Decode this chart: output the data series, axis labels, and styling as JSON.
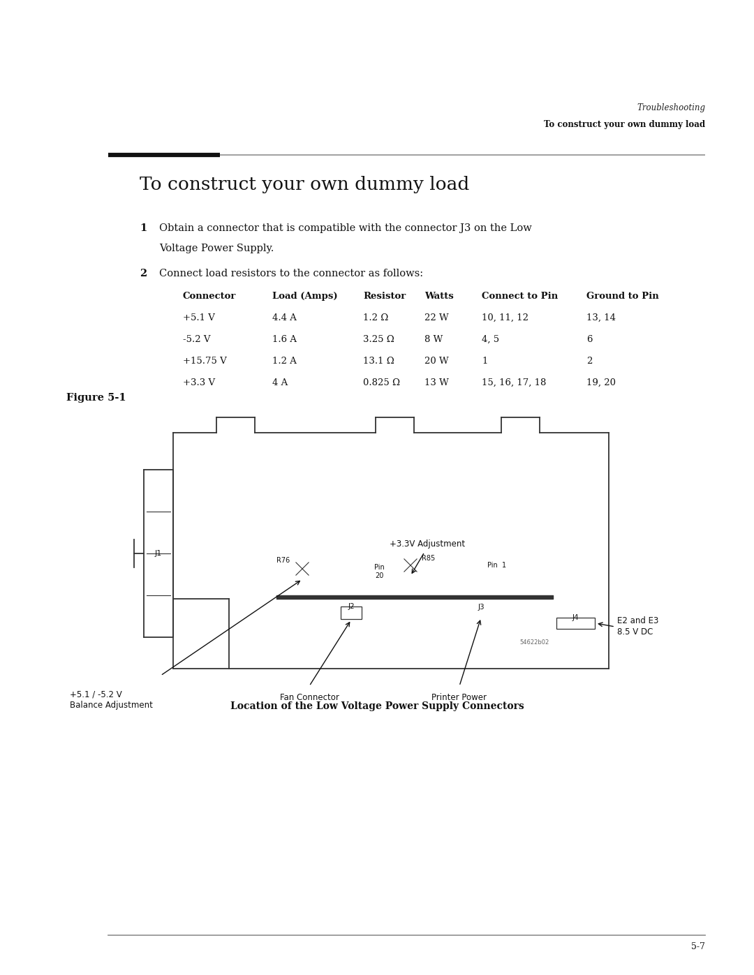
{
  "bg_color": "#ffffff",
  "header_line1": "Troubleshooting",
  "header_line2": "To construct your own dummy load",
  "section_title": "To construct your own dummy load",
  "step1_num": "1",
  "step1_line1": "Obtain a connector that is compatible with the connector J3 on the Low",
  "step1_line2": "Voltage Power Supply.",
  "step2_num": "2",
  "step2": "Connect load resistors to the connector as follows:",
  "table_headers": [
    "Connector",
    "Load (Amps)",
    "Resistor",
    "Watts",
    "Connect to Pin",
    "Ground to Pin"
  ],
  "table_rows": [
    [
      "+5.1 V",
      "4.4 A",
      "1.2 Ω",
      "22 W",
      "10, 11, 12",
      "13, 14"
    ],
    [
      "-5.2 V",
      "1.6 A",
      "3.25 Ω",
      "8 W",
      "4, 5",
      "6"
    ],
    [
      "+15.75 V",
      "1.2 A",
      "13.1 Ω",
      "20 W",
      "1",
      "2"
    ],
    [
      "+3.3 V",
      "4 A",
      "0.825 Ω",
      "13 W",
      "15, 16, 17, 18",
      "19, 20"
    ]
  ],
  "figure_label": "Figure 5-1",
  "figure_caption": "Location of the Low Voltage Power Supply Connectors",
  "page_number": "5-7"
}
